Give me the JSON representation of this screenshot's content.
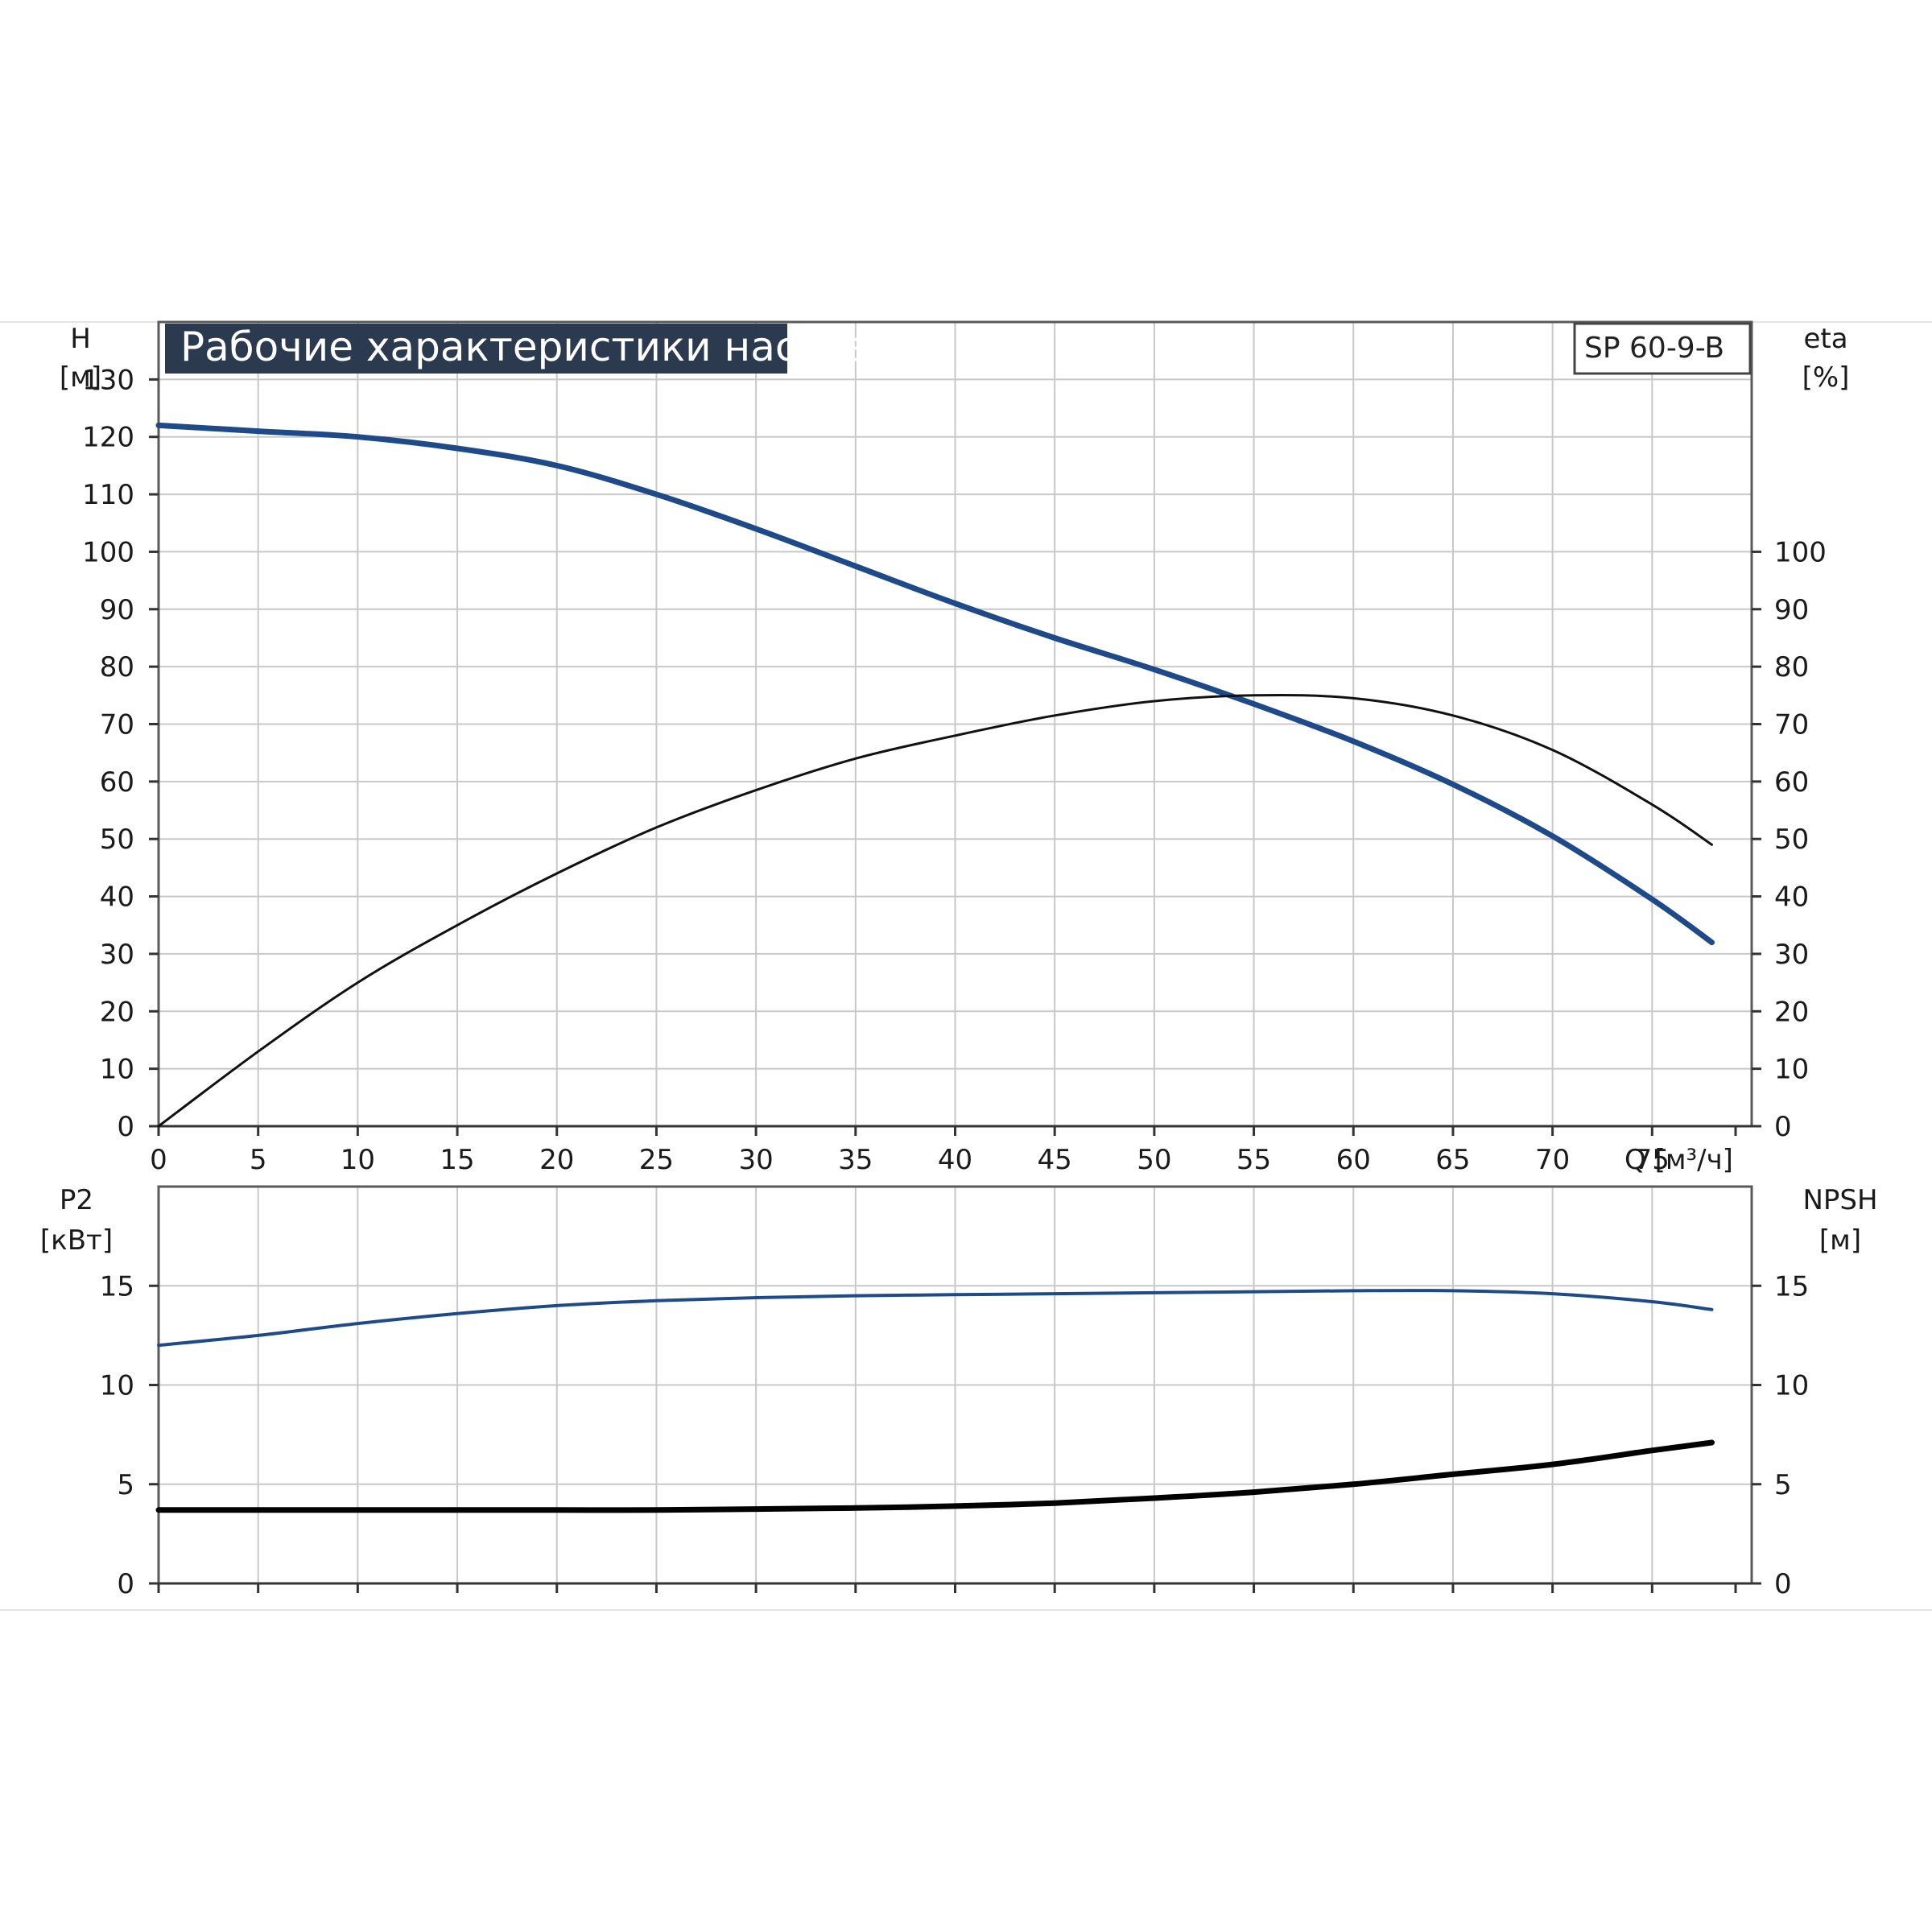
{
  "chart_data": [
    {
      "type": "line",
      "title": "Рабочие характеристики насоса",
      "model_label": "SP 60-9-B",
      "x_axis": {
        "label": "Q [м³/ч]",
        "range": [
          0,
          80
        ],
        "ticks": [
          0,
          5,
          10,
          15,
          20,
          25,
          30,
          35,
          40,
          45,
          50,
          55,
          60,
          65,
          70,
          75
        ]
      },
      "y_left": {
        "label_line1": "H",
        "label_line2": "[м]",
        "range": [
          0,
          140
        ],
        "ticks": [
          0,
          10,
          20,
          30,
          40,
          50,
          60,
          70,
          80,
          90,
          100,
          110,
          120,
          130
        ]
      },
      "y_right": {
        "label_line1": "eta",
        "label_line2": "[%]",
        "range": [
          0,
          140
        ],
        "ticks": [
          0,
          10,
          20,
          30,
          40,
          50,
          60,
          70,
          80,
          90,
          100
        ]
      },
      "grid": true,
      "series": [
        {
          "key": "H",
          "axis": "left",
          "color": "#1f4a8a",
          "x": [
            0,
            5,
            10,
            15,
            20,
            25,
            30,
            35,
            40,
            45,
            50,
            55,
            60,
            65,
            70,
            75,
            78
          ],
          "y": [
            122,
            121,
            120,
            118,
            115,
            110,
            104,
            97.5,
            91,
            85,
            79.5,
            73.5,
            67,
            59.5,
            50.5,
            39.5,
            32
          ]
        },
        {
          "key": "eta",
          "axis": "right",
          "color": "#111111",
          "x": [
            0,
            5,
            10,
            15,
            20,
            25,
            30,
            35,
            40,
            45,
            50,
            55,
            60,
            65,
            70,
            75,
            78
          ],
          "y": [
            0,
            13,
            25,
            35,
            44,
            52,
            58.5,
            64,
            68,
            71.5,
            74,
            75,
            74.5,
            71.5,
            65.5,
            56,
            49
          ]
        }
      ]
    },
    {
      "type": "line",
      "x_axis": {
        "range": [
          0,
          80
        ],
        "ticks": [
          0,
          5,
          10,
          15,
          20,
          25,
          30,
          35,
          40,
          45,
          50,
          55,
          60,
          65,
          70,
          75
        ]
      },
      "y_left": {
        "label_line1": "P2",
        "label_line2": "[кВт]",
        "range": [
          0,
          20
        ],
        "ticks": [
          0,
          5,
          10,
          15
        ]
      },
      "y_right": {
        "label_line1": "NPSH",
        "label_line2": "[м]",
        "range": [
          0,
          20
        ],
        "ticks": [
          0,
          5,
          10,
          15
        ]
      },
      "grid": true,
      "series": [
        {
          "key": "P2",
          "axis": "left",
          "color": "#1f4a8a",
          "x": [
            0,
            5,
            10,
            15,
            20,
            25,
            30,
            35,
            40,
            45,
            50,
            55,
            60,
            65,
            70,
            75,
            78
          ],
          "y": [
            12,
            12.5,
            13.1,
            13.6,
            14.0,
            14.25,
            14.4,
            14.5,
            14.55,
            14.6,
            14.65,
            14.7,
            14.75,
            14.75,
            14.6,
            14.2,
            13.8
          ]
        },
        {
          "key": "NPSH",
          "axis": "right",
          "color": "#000000",
          "x": [
            0,
            5,
            10,
            15,
            20,
            25,
            30,
            35,
            40,
            45,
            50,
            55,
            60,
            65,
            70,
            75,
            78
          ],
          "y": [
            3.7,
            3.7,
            3.7,
            3.7,
            3.7,
            3.7,
            3.75,
            3.8,
            3.9,
            4.05,
            4.3,
            4.6,
            5.0,
            5.5,
            6.0,
            6.7,
            7.1
          ]
        }
      ]
    }
  ]
}
